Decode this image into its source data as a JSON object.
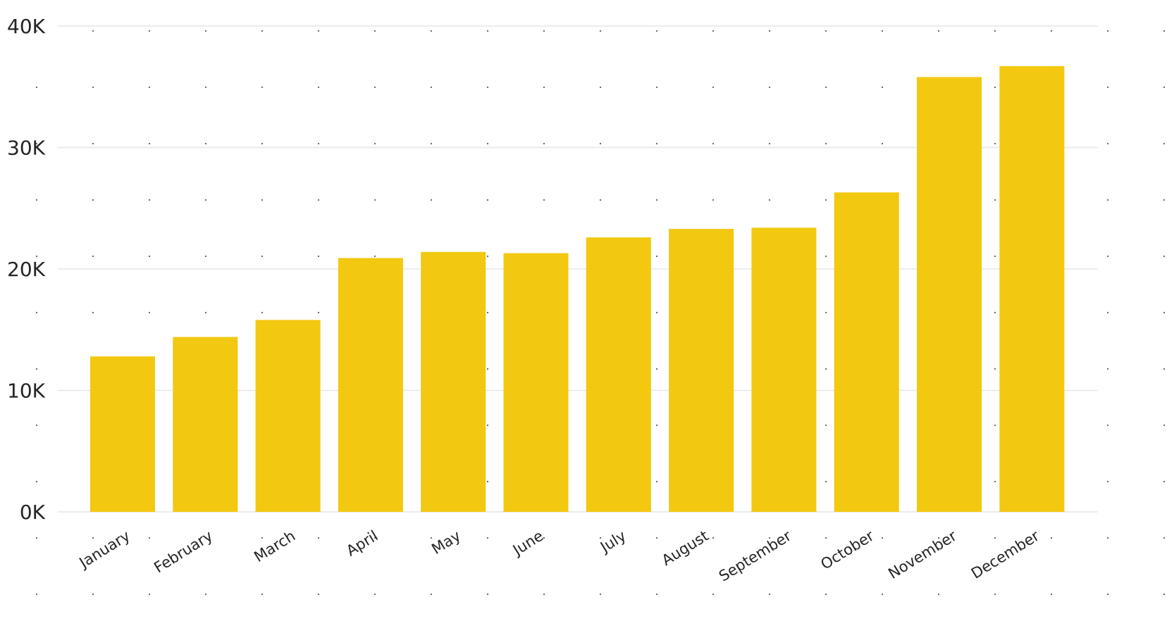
{
  "chart_data": {
    "type": "bar",
    "categories": [
      "January",
      "February",
      "March",
      "April",
      "May",
      "June",
      "July",
      "August",
      "September",
      "October",
      "November",
      "December"
    ],
    "values": [
      12800,
      14400,
      15800,
      20900,
      21400,
      21300,
      22600,
      23300,
      23400,
      26300,
      35800,
      36700
    ],
    "ylim": [
      0,
      40000
    ],
    "yticks": [
      0,
      10000,
      20000,
      30000,
      40000
    ],
    "ytick_labels": [
      "0K",
      "10K",
      "20K",
      "30K",
      "40K"
    ],
    "bar_color": "#F2C811",
    "grid": true,
    "title": "",
    "xlabel": "",
    "ylabel": ""
  }
}
